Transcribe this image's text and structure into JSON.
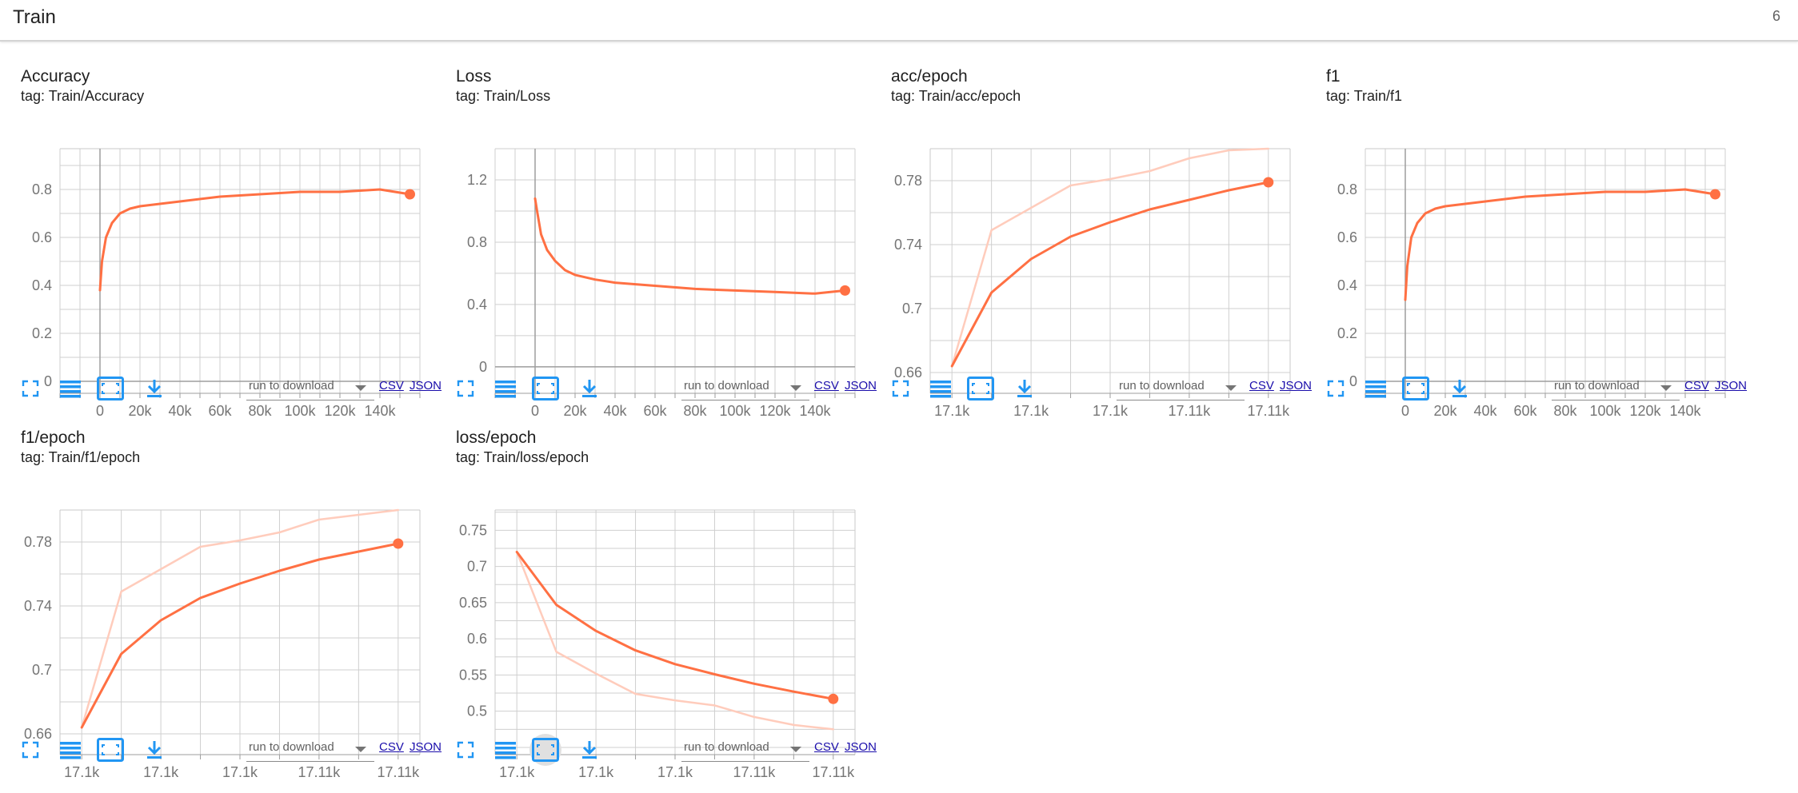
{
  "header": {
    "title": "Train",
    "count": "6"
  },
  "toolbar": {
    "select_placeholder": "run to download",
    "csv_label": "CSV",
    "json_label": "JSON",
    "icons": [
      "fullscreen-icon",
      "data-table-icon",
      "fit-domain-icon",
      "download-icon"
    ]
  },
  "colors": {
    "accent": "#ff7043",
    "faint": "#ffccbc",
    "grid": "#c8c8c8",
    "axis": "#9e9e9e",
    "link": "#1a0dab"
  },
  "cards": [
    {
      "id": "accuracy",
      "title": "Accuracy",
      "tag": "tag: Train/Accuracy"
    },
    {
      "id": "loss",
      "title": "Loss",
      "tag": "tag: Train/Loss"
    },
    {
      "id": "acc-epoch",
      "title": "acc/epoch",
      "tag": "tag: Train/acc/epoch"
    },
    {
      "id": "f1",
      "title": "f1",
      "tag": "tag: Train/f1"
    },
    {
      "id": "f1-epoch",
      "title": "f1/epoch",
      "tag": "tag: Train/f1/epoch"
    },
    {
      "id": "loss-epoch",
      "title": "loss/epoch",
      "tag": "tag: Train/loss/epoch"
    }
  ],
  "chart_data": [
    {
      "id": "accuracy",
      "type": "line",
      "title": "Accuracy",
      "xlim": [
        -20000,
        160000
      ],
      "ylim": [
        -0.05,
        0.97
      ],
      "x_ticks": [
        0,
        20000,
        40000,
        60000,
        80000,
        100000,
        120000,
        140000
      ],
      "x_tick_labels": [
        "0",
        "20k",
        "40k",
        "60k",
        "80k",
        "100k",
        "120k",
        "140k"
      ],
      "y_ticks": [
        0,
        0.2,
        0.4,
        0.6,
        0.8
      ],
      "y_tick_labels": [
        "0",
        "0.2",
        "0.4",
        "0.6",
        "0.8"
      ],
      "zero_axis": true,
      "grid": true,
      "series": [
        {
          "role": "smoothed",
          "x": [
            0,
            1000,
            3000,
            6000,
            10000,
            15000,
            20000,
            30000,
            40000,
            60000,
            80000,
            100000,
            120000,
            140000,
            155000
          ],
          "y": [
            0.38,
            0.5,
            0.6,
            0.66,
            0.7,
            0.72,
            0.73,
            0.74,
            0.75,
            0.77,
            0.78,
            0.79,
            0.79,
            0.8,
            0.78
          ]
        }
      ]
    },
    {
      "id": "loss",
      "type": "line",
      "title": "Loss",
      "xlim": [
        -20000,
        160000
      ],
      "ylim": [
        -0.17,
        1.4
      ],
      "x_ticks": [
        0,
        20000,
        40000,
        60000,
        80000,
        100000,
        120000,
        140000
      ],
      "x_tick_labels": [
        "0",
        "20k",
        "40k",
        "60k",
        "80k",
        "100k",
        "120k",
        "140k"
      ],
      "y_ticks": [
        0,
        0.4,
        0.8,
        1.2
      ],
      "y_tick_labels": [
        "0",
        "0.4",
        "0.8",
        "1.2"
      ],
      "zero_axis": true,
      "grid": true,
      "series": [
        {
          "role": "smoothed",
          "x": [
            0,
            1000,
            3000,
            6000,
            10000,
            15000,
            20000,
            30000,
            40000,
            60000,
            80000,
            100000,
            120000,
            140000,
            155000
          ],
          "y": [
            1.08,
            1.0,
            0.85,
            0.75,
            0.68,
            0.62,
            0.59,
            0.56,
            0.54,
            0.52,
            0.5,
            0.49,
            0.48,
            0.47,
            0.49
          ]
        }
      ]
    },
    {
      "id": "acc-epoch",
      "type": "line",
      "title": "acc/epoch",
      "xlim": [
        -0.55,
        8.55
      ],
      "ylim": [
        0.647,
        0.8
      ],
      "x_ticks": [
        0,
        2,
        4,
        6,
        8
      ],
      "x_tick_labels": [
        "17.1k",
        "17.1k",
        "17.1k",
        "17.11k",
        "17.11k"
      ],
      "y_ticks": [
        0.66,
        0.7,
        0.74,
        0.78
      ],
      "y_tick_labels": [
        "0.66",
        "0.7",
        "0.74",
        "0.78"
      ],
      "grid": true,
      "series": [
        {
          "role": "raw",
          "x": [
            0,
            1,
            2,
            3,
            4,
            5,
            6,
            7,
            8
          ],
          "y": [
            0.664,
            0.749,
            0.763,
            0.777,
            0.781,
            0.786,
            0.794,
            0.799,
            0.8
          ]
        },
        {
          "role": "smoothed",
          "x": [
            0,
            1,
            2,
            3,
            4,
            5,
            6,
            7,
            8
          ],
          "y": [
            0.664,
            0.71,
            0.731,
            0.745,
            0.754,
            0.762,
            0.768,
            0.774,
            0.779
          ]
        }
      ]
    },
    {
      "id": "f1",
      "type": "line",
      "title": "f1",
      "xlim": [
        -20000,
        160000
      ],
      "ylim": [
        -0.05,
        0.97
      ],
      "x_ticks": [
        0,
        20000,
        40000,
        60000,
        80000,
        100000,
        120000,
        140000
      ],
      "x_tick_labels": [
        "0",
        "20k",
        "40k",
        "60k",
        "80k",
        "100k",
        "120k",
        "140k"
      ],
      "y_ticks": [
        0,
        0.2,
        0.4,
        0.6,
        0.8
      ],
      "y_tick_labels": [
        "0",
        "0.2",
        "0.4",
        "0.6",
        "0.8"
      ],
      "zero_axis": true,
      "grid": true,
      "series": [
        {
          "role": "smoothed",
          "x": [
            0,
            1000,
            3000,
            6000,
            10000,
            15000,
            20000,
            30000,
            40000,
            60000,
            80000,
            100000,
            120000,
            140000,
            155000
          ],
          "y": [
            0.34,
            0.48,
            0.6,
            0.66,
            0.7,
            0.72,
            0.73,
            0.74,
            0.75,
            0.77,
            0.78,
            0.79,
            0.79,
            0.8,
            0.78
          ]
        }
      ]
    },
    {
      "id": "f1-epoch",
      "type": "line",
      "title": "f1/epoch",
      "xlim": [
        -0.55,
        8.55
      ],
      "ylim": [
        0.647,
        0.8
      ],
      "x_ticks": [
        0,
        2,
        4,
        6,
        8
      ],
      "x_tick_labels": [
        "17.1k",
        "17.1k",
        "17.1k",
        "17.11k",
        "17.11k"
      ],
      "y_ticks": [
        0.66,
        0.7,
        0.74,
        0.78
      ],
      "y_tick_labels": [
        "0.66",
        "0.7",
        "0.74",
        "0.78"
      ],
      "grid": true,
      "series": [
        {
          "role": "raw",
          "x": [
            0,
            1,
            2,
            3,
            4,
            5,
            6,
            7,
            8
          ],
          "y": [
            0.664,
            0.749,
            0.763,
            0.777,
            0.781,
            0.786,
            0.794,
            0.797,
            0.8
          ]
        },
        {
          "role": "smoothed",
          "x": [
            0,
            1,
            2,
            3,
            4,
            5,
            6,
            7,
            8
          ],
          "y": [
            0.664,
            0.71,
            0.731,
            0.745,
            0.754,
            0.762,
            0.769,
            0.774,
            0.779
          ]
        }
      ]
    },
    {
      "id": "loss-epoch",
      "type": "line",
      "title": "loss/epoch",
      "xlim": [
        -0.55,
        8.55
      ],
      "ylim": [
        0.44,
        0.778
      ],
      "x_ticks": [
        0,
        2,
        4,
        6,
        8
      ],
      "x_tick_labels": [
        "17.1k",
        "17.1k",
        "17.1k",
        "17.11k",
        "17.11k"
      ],
      "y_ticks": [
        0.5,
        0.55,
        0.6,
        0.65,
        0.7,
        0.75
      ],
      "y_tick_labels": [
        "0.5",
        "0.55",
        "0.6",
        "0.65",
        "0.7",
        "0.75"
      ],
      "grid": true,
      "series": [
        {
          "role": "raw",
          "x": [
            0,
            1,
            2,
            3,
            4,
            5,
            6,
            7,
            8
          ],
          "y": [
            0.72,
            0.582,
            0.552,
            0.524,
            0.515,
            0.508,
            0.492,
            0.481,
            0.475
          ]
        },
        {
          "role": "smoothed",
          "x": [
            0,
            1,
            2,
            3,
            4,
            5,
            6,
            7,
            8
          ],
          "y": [
            0.72,
            0.647,
            0.611,
            0.584,
            0.565,
            0.551,
            0.538,
            0.527,
            0.517
          ]
        }
      ]
    }
  ]
}
